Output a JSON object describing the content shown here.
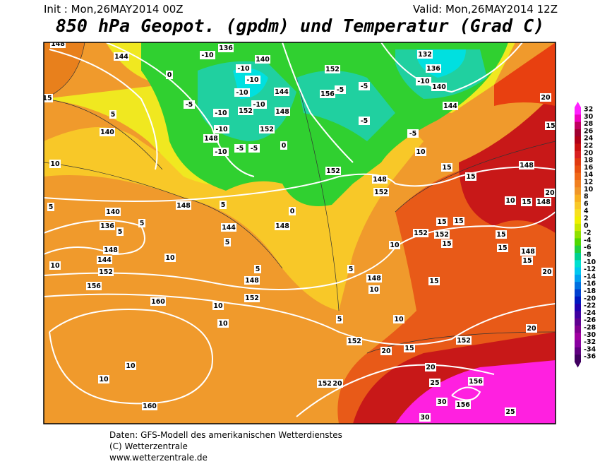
{
  "header": {
    "init": "Init : Mon,26MAY2014 00Z",
    "valid": "Valid: Mon,26MAY2014 12Z",
    "title": "850 hPa Geopot. (gpdm) und Temperatur (Grad C)"
  },
  "colorbar": {
    "labels": [
      32,
      30,
      28,
      26,
      24,
      22,
      20,
      18,
      16,
      14,
      12,
      10,
      8,
      6,
      4,
      2,
      0,
      -2,
      -4,
      -6,
      -8,
      -10,
      -12,
      -14,
      -16,
      -18,
      -20,
      -22,
      -24,
      -26,
      -28,
      -30,
      -32,
      -34,
      -36
    ],
    "colors": [
      "#ff20ff",
      "#f000c0",
      "#c00060",
      "#a00030",
      "#b00018",
      "#c81010",
      "#d82020",
      "#e03a10",
      "#e85010",
      "#f06818",
      "#f08020",
      "#f09628",
      "#f8b020",
      "#f8c828",
      "#f8e020",
      "#f0f000",
      "#c8e800",
      "#90e000",
      "#50d800",
      "#20d040",
      "#00d090",
      "#00e0d0",
      "#00c8f0",
      "#00a0f0",
      "#0070e0",
      "#0040d0",
      "#0018c0",
      "#2000b0",
      "#4000a0",
      "#600090",
      "#800090",
      "#a000a0",
      "#8800a0",
      "#600080",
      "#400060"
    ]
  },
  "map": {
    "labels": [
      148,
      144,
      136,
      140,
      -10,
      -10,
      -10,
      152,
      -5,
      156,
      132,
      136,
      -10,
      140,
      144,
      -5,
      0,
      15,
      5,
      140,
      -5,
      -10,
      144,
      -10,
      152,
      148,
      -10,
      -10,
      152,
      148,
      -5,
      -10,
      -5,
      0,
      -5,
      -5,
      10,
      10,
      20,
      15,
      152,
      148,
      152,
      15,
      15,
      148,
      10,
      15,
      148,
      20,
      5,
      140,
      148,
      5,
      136,
      5,
      5,
      144,
      148,
      144,
      5,
      148,
      0,
      10,
      10,
      152,
      156,
      5,
      148,
      152,
      160,
      10,
      10,
      152,
      152,
      15,
      15,
      15,
      15,
      10,
      148,
      15,
      15,
      20,
      15,
      148,
      10,
      5,
      10,
      5,
      152,
      152,
      15,
      20,
      20,
      10,
      10,
      160,
      152,
      20,
      20,
      25,
      156,
      30,
      156,
      30,
      25
    ]
  },
  "footer": [
    "Daten: GFS-Modell des amerikanischen Wetterdienstes",
    "(C) Wetterzentrale",
    "www.wetterzentrale.de"
  ]
}
